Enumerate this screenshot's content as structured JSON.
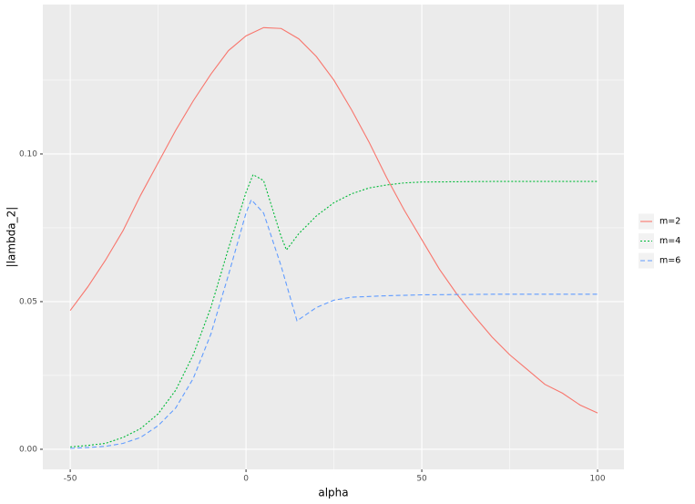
{
  "chart_data": {
    "type": "line",
    "x_label": "alpha",
    "y_label": "|lambda_2|",
    "xlim": [
      -57.8,
      107.5
    ],
    "ylim": [
      -0.0068,
      0.1506
    ],
    "xticks": [
      -50,
      0,
      50,
      100
    ],
    "yticks": [
      {
        "value": 0,
        "label": "0.00"
      },
      {
        "value": 0.05,
        "label": "0.05"
      },
      {
        "value": 0.1,
        "label": "0.10"
      }
    ],
    "x_minor_ticks": [
      -25,
      25,
      75
    ],
    "y_minor_ticks": [
      0.025,
      0.075,
      0.125
    ],
    "grid": true,
    "series": [
      {
        "name": "m=2",
        "color": "#F8766D",
        "dash": "solid",
        "x": [
          -50,
          -45,
          -40,
          -35,
          -30,
          -25,
          -20,
          -15,
          -10,
          -5,
          0,
          5,
          10,
          15,
          20,
          25,
          30,
          35,
          40,
          45,
          50,
          55,
          60,
          65,
          70,
          75,
          80,
          85,
          90,
          95,
          100
        ],
        "values": [
          0.047,
          0.055,
          0.064,
          0.074,
          0.086,
          0.097,
          0.108,
          0.118,
          0.127,
          0.135,
          0.14,
          0.1428,
          0.1425,
          0.139,
          0.133,
          0.125,
          0.115,
          0.104,
          0.092,
          0.081,
          0.071,
          0.061,
          0.0525,
          0.045,
          0.038,
          0.032,
          0.027,
          0.022,
          0.019,
          0.015,
          0.0123
        ]
      },
      {
        "name": "m=4",
        "color": "#00BA38",
        "dash": "dotted",
        "x": [
          -50,
          -45,
          -40,
          -35,
          -30,
          -25,
          -20,
          -15,
          -10,
          -5,
          0,
          2,
          5,
          10,
          11.5,
          15,
          20,
          25,
          30,
          35,
          40,
          45,
          50,
          60,
          70,
          80,
          90,
          100
        ],
        "values": [
          0.0008,
          0.0013,
          0.002,
          0.004,
          0.007,
          0.012,
          0.02,
          0.032,
          0.048,
          0.068,
          0.087,
          0.093,
          0.091,
          0.072,
          0.0675,
          0.073,
          0.079,
          0.0835,
          0.0865,
          0.0885,
          0.0895,
          0.0902,
          0.0905,
          0.0906,
          0.0907,
          0.0907,
          0.0907,
          0.0907
        ]
      },
      {
        "name": "m=6",
        "color": "#619CFF",
        "dash": "dashed",
        "x": [
          -50,
          -45,
          -40,
          -35,
          -30,
          -25,
          -20,
          -15,
          -10,
          -5,
          0,
          1.5,
          5,
          10,
          14.5,
          20,
          25,
          30,
          40,
          50,
          60,
          70,
          80,
          90,
          100
        ],
        "values": [
          0.0003,
          0.0006,
          0.001,
          0.002,
          0.004,
          0.008,
          0.014,
          0.024,
          0.039,
          0.059,
          0.08,
          0.0845,
          0.08,
          0.062,
          0.0435,
          0.048,
          0.0505,
          0.0515,
          0.052,
          0.0523,
          0.0524,
          0.0525,
          0.0525,
          0.0525,
          0.0525
        ]
      }
    ]
  }
}
